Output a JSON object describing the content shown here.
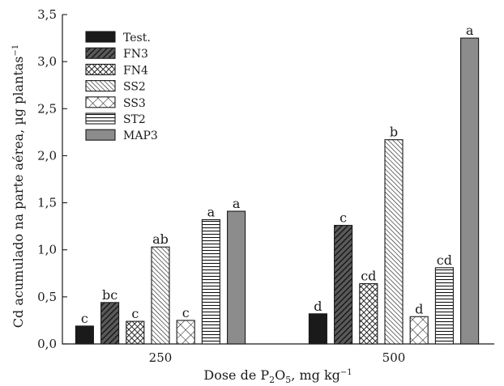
{
  "chart_data": {
    "type": "bar",
    "title": "",
    "xlabel": "Dose de P",
    "xlabel_sub": "2",
    "xlabel_mid": "O",
    "xlabel_sub2": "5",
    "xlabel_tail": ", mg kg",
    "xlabel_sup": "−1",
    "ylabel": "Cd acumulado na parte aérea, µg plantas",
    "ylabel_sup": "−1",
    "ylim": [
      0,
      3.5
    ],
    "yticks": [
      {
        "value": 0,
        "label": "0,0"
      },
      {
        "value": 0.5,
        "label": "0,5"
      },
      {
        "value": 1.0,
        "label": "1,0"
      },
      {
        "value": 1.5,
        "label": "1,5"
      },
      {
        "value": 2.0,
        "label": "2,0"
      },
      {
        "value": 2.5,
        "label": "2,5"
      },
      {
        "value": 3.0,
        "label": "3,0"
      },
      {
        "value": 3.5,
        "label": "3,5"
      }
    ],
    "categories": [
      "250",
      "500"
    ],
    "legend_position": "top-left",
    "grid": false,
    "series": [
      {
        "name": "Test.",
        "pattern": "solid-black",
        "values": [
          0.19,
          0.32
        ],
        "letters": [
          "c",
          "d"
        ]
      },
      {
        "name": "FN3",
        "pattern": "hatch-dense",
        "values": [
          0.44,
          1.26
        ],
        "letters": [
          "bc",
          "c"
        ]
      },
      {
        "name": "FN4",
        "pattern": "crosshatch-dense",
        "values": [
          0.24,
          0.64
        ],
        "letters": [
          "c",
          "cd"
        ]
      },
      {
        "name": "SS2",
        "pattern": "hatch-fine",
        "values": [
          1.03,
          2.17
        ],
        "letters": [
          "ab",
          "b"
        ]
      },
      {
        "name": "SS3",
        "pattern": "crosshatch-open",
        "values": [
          0.25,
          0.29
        ],
        "letters": [
          "c",
          "d"
        ]
      },
      {
        "name": "ST2",
        "pattern": "horizontal-lines",
        "values": [
          1.32,
          0.81
        ],
        "letters": [
          "a",
          "cd"
        ]
      },
      {
        "name": "MAP3",
        "pattern": "solid-gray",
        "values": [
          1.41,
          3.25
        ],
        "letters": [
          "a",
          "a"
        ]
      }
    ],
    "colors": {
      "black": "#1a1a1a",
      "gray": "#8c8c8c",
      "white": "#ffffff"
    }
  }
}
